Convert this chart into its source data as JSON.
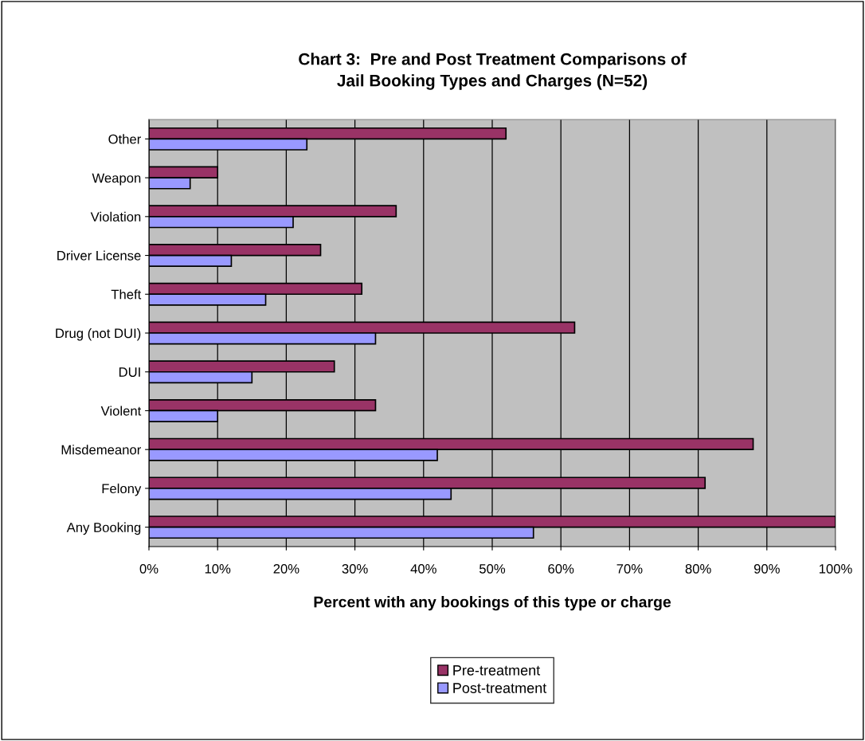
{
  "chart_data": {
    "type": "bar",
    "orientation": "horizontal",
    "title": "Chart 3:  Pre and Post Treatment Comparisons of\nJail Booking Types and Charges (N=52)",
    "xlabel": "Percent with any bookings of this type or charge",
    "categories": [
      "Other",
      "Weapon",
      "Violation",
      "Driver License",
      "Theft",
      "Drug (not DUI)",
      "DUI",
      "Violent",
      "Misdemeanor",
      "Felony",
      "Any Booking"
    ],
    "series": [
      {
        "name": "Pre-treatment",
        "color": "#993366",
        "values": [
          52,
          10,
          36,
          25,
          31,
          62,
          27,
          33,
          88,
          81,
          100
        ]
      },
      {
        "name": "Post-treatment",
        "color": "#9999ff",
        "values": [
          23,
          6,
          21,
          12,
          17,
          33,
          15,
          10,
          42,
          44,
          56
        ]
      }
    ],
    "xlim": [
      0,
      100
    ],
    "xticks": [
      {
        "value": 0,
        "label": "0%"
      },
      {
        "value": 10,
        "label": "10%"
      },
      {
        "value": 20,
        "label": "20%"
      },
      {
        "value": 30,
        "label": "30%"
      },
      {
        "value": 40,
        "label": "40%"
      },
      {
        "value": 50,
        "label": "50%"
      },
      {
        "value": 60,
        "label": "60%"
      },
      {
        "value": 70,
        "label": "70%"
      },
      {
        "value": 80,
        "label": "80%"
      },
      {
        "value": 90,
        "label": "90%"
      },
      {
        "value": 100,
        "label": "100%"
      }
    ],
    "grid": "x",
    "legend": "bottom"
  }
}
